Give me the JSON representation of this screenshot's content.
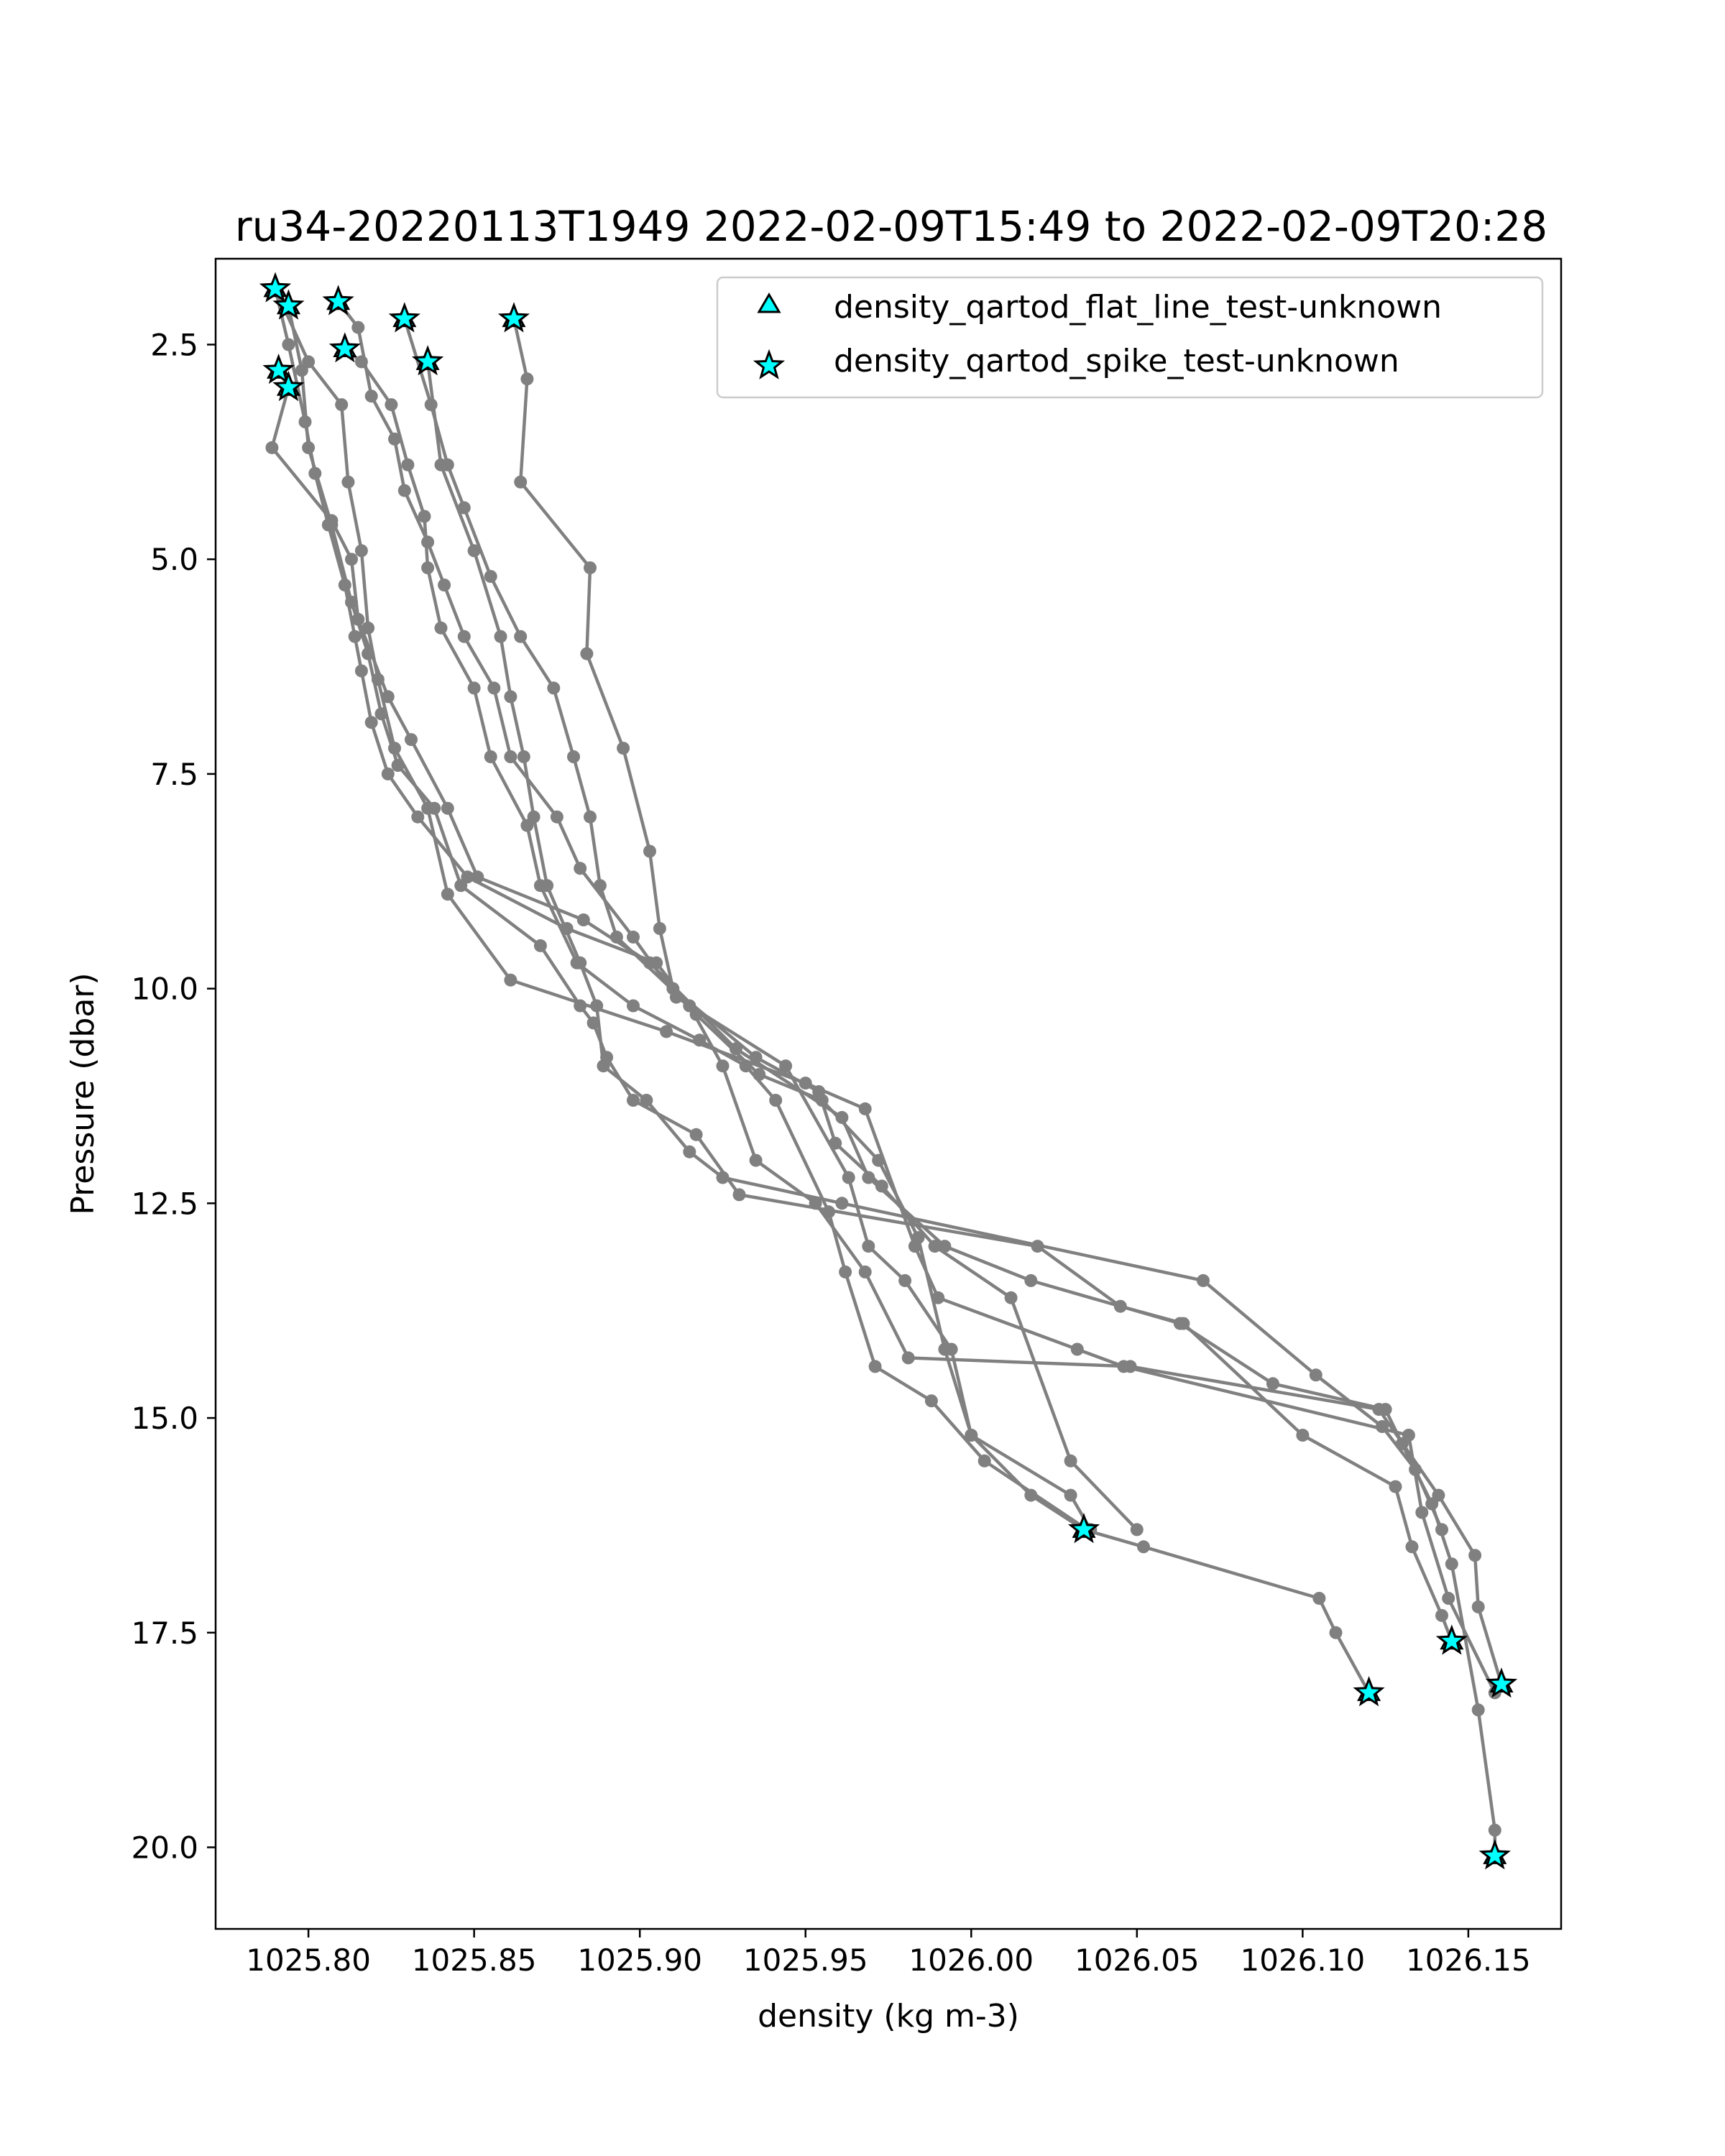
{
  "chart_data": {
    "type": "scatter",
    "title": "ru34-20220113T1949 2022-02-09T15:49 to 2022-02-09T20:28",
    "xlabel": "density (kg m-3)",
    "ylabel": "Pressure (dbar)",
    "xlim": [
      1025.772,
      1026.178
    ],
    "ylim": [
      1.5,
      20.95
    ],
    "y_inverted": true,
    "xticks": [
      "1025.80",
      "1025.85",
      "1025.90",
      "1025.95",
      "1026.00",
      "1026.05",
      "1026.10",
      "1026.15"
    ],
    "xtick_values": [
      1025.8,
      1025.85,
      1025.9,
      1025.95,
      1026.0,
      1026.05,
      1026.1,
      1026.15
    ],
    "yticks": [
      "2.5",
      "5.0",
      "7.5",
      "10.0",
      "12.5",
      "15.0",
      "17.5",
      "20.0"
    ],
    "ytick_values": [
      2.5,
      5.0,
      7.5,
      10.0,
      12.5,
      15.0,
      17.5,
      20.0
    ],
    "grid": false,
    "legend_position": "top-right",
    "colors": {
      "profile_line": "#808080",
      "marker_fill": "#00ffff",
      "marker_edge": "#000000"
    },
    "legend": [
      {
        "label": "density_qartod_flat_line_test-unknown",
        "marker": "triangle"
      },
      {
        "label": "density_qartod_spike_test-unknown",
        "marker": "star"
      }
    ],
    "profiles": [
      {
        "points": [
          [
            1025.79,
            1.85
          ],
          [
            1025.794,
            2.5
          ],
          [
            1025.799,
            3.4
          ],
          [
            1025.802,
            4.0
          ],
          [
            1025.806,
            4.6
          ],
          [
            1025.811,
            5.3
          ],
          [
            1025.814,
            5.9
          ],
          [
            1025.816,
            6.3
          ],
          [
            1025.819,
            6.9
          ],
          [
            1025.824,
            7.5
          ],
          [
            1025.833,
            8.0
          ],
          [
            1025.848,
            8.7
          ],
          [
            1025.878,
            9.3
          ],
          [
            1025.905,
            9.7
          ],
          [
            1025.917,
            10.3
          ],
          [
            1025.936,
            11.0
          ],
          [
            1025.955,
            11.3
          ],
          [
            1025.972,
            12.0
          ],
          [
            1025.984,
            12.9
          ],
          [
            1025.992,
            14.2
          ],
          [
            1026.0,
            15.2
          ],
          [
            1026.018,
            15.9
          ],
          [
            1026.034,
            16.3
          ],
          [
            1026.052,
            16.5
          ],
          [
            1026.105,
            17.1
          ],
          [
            1026.11,
            17.5
          ],
          [
            1026.12,
            18.2
          ]
        ]
      },
      {
        "points": [
          [
            1025.794,
            2.05
          ],
          [
            1025.798,
            2.8
          ],
          [
            1025.8,
            3.7
          ],
          [
            1025.807,
            4.6
          ],
          [
            1025.813,
            5.5
          ],
          [
            1025.818,
            6.1
          ],
          [
            1025.822,
            6.8
          ],
          [
            1025.827,
            7.4
          ],
          [
            1025.838,
            7.9
          ],
          [
            1025.846,
            8.8
          ],
          [
            1025.87,
            9.5
          ],
          [
            1025.882,
            10.2
          ],
          [
            1025.886,
            10.4
          ],
          [
            1025.89,
            10.8
          ],
          [
            1025.898,
            11.3
          ],
          [
            1025.917,
            11.7
          ],
          [
            1025.93,
            12.4
          ],
          [
            1026.02,
            13.0
          ],
          [
            1026.045,
            13.7
          ],
          [
            1026.064,
            13.9
          ],
          [
            1026.1,
            15.2
          ],
          [
            1026.128,
            15.8
          ],
          [
            1026.133,
            16.5
          ],
          [
            1026.142,
            17.3
          ],
          [
            1026.145,
            17.6
          ]
        ]
      },
      {
        "points": [
          [
            1025.791,
            2.8
          ],
          [
            1025.794,
            3.0
          ],
          [
            1025.789,
            3.7
          ],
          [
            1025.807,
            4.55
          ],
          [
            1025.813,
            5.0
          ],
          [
            1025.815,
            5.7
          ],
          [
            1025.824,
            6.6
          ],
          [
            1025.831,
            7.1
          ],
          [
            1025.842,
            7.9
          ],
          [
            1025.851,
            8.7
          ],
          [
            1025.883,
            9.2
          ],
          [
            1025.903,
            9.7
          ],
          [
            1025.929,
            10.7
          ],
          [
            1025.961,
            11.5
          ],
          [
            1025.969,
            12.2
          ],
          [
            1025.992,
            13.0
          ],
          [
            1026.018,
            13.4
          ],
          [
            1026.063,
            13.9
          ],
          [
            1026.091,
            14.6
          ],
          [
            1026.125,
            14.9
          ],
          [
            1026.13,
            15.3
          ],
          [
            1026.139,
            16.0
          ],
          [
            1026.145,
            16.7
          ],
          [
            1026.153,
            18.4
          ],
          [
            1026.158,
            19.8
          ],
          [
            1026.158,
            20.1
          ]
        ]
      },
      {
        "points": [
          [
            1025.79,
            1.85
          ],
          [
            1025.8,
            2.7
          ],
          [
            1025.81,
            3.2
          ],
          [
            1025.812,
            4.1
          ],
          [
            1025.816,
            4.9
          ],
          [
            1025.818,
            5.8
          ],
          [
            1025.821,
            6.4
          ],
          [
            1025.826,
            7.2
          ],
          [
            1025.836,
            7.9
          ],
          [
            1025.842,
            8.9
          ],
          [
            1025.861,
            9.9
          ],
          [
            1025.908,
            10.5
          ],
          [
            1025.95,
            11.1
          ],
          [
            1025.968,
            11.4
          ],
          [
            1025.983,
            13.0
          ],
          [
            1025.99,
            13.6
          ],
          [
            1026.032,
            14.2
          ],
          [
            1026.046,
            14.4
          ],
          [
            1026.132,
            15.2
          ],
          [
            1026.136,
            16.1
          ],
          [
            1026.144,
            17.1
          ],
          [
            1026.158,
            18.2
          ]
        ]
      },
      {
        "points": [
          [
            1025.809,
            2.0
          ],
          [
            1025.815,
            2.3
          ],
          [
            1025.819,
            3.1
          ],
          [
            1025.826,
            3.6
          ],
          [
            1025.829,
            4.2
          ],
          [
            1025.836,
            4.8
          ],
          [
            1025.841,
            5.3
          ],
          [
            1025.847,
            5.9
          ],
          [
            1025.856,
            6.5
          ],
          [
            1025.861,
            7.3
          ],
          [
            1025.875,
            8.0
          ],
          [
            1025.882,
            8.6
          ],
          [
            1025.898,
            9.4
          ],
          [
            1025.911,
            10.1
          ],
          [
            1025.944,
            10.9
          ],
          [
            1025.963,
            12.2
          ],
          [
            1025.969,
            13.0
          ],
          [
            1025.98,
            13.4
          ],
          [
            1025.994,
            14.2
          ],
          [
            1026.0,
            15.2
          ],
          [
            1026.03,
            15.9
          ],
          [
            1026.036,
            16.3
          ]
        ]
      },
      {
        "points": [
          [
            1025.829,
            2.2
          ],
          [
            1025.837,
            3.2
          ],
          [
            1025.842,
            3.9
          ],
          [
            1025.847,
            4.4
          ],
          [
            1025.855,
            5.2
          ],
          [
            1025.864,
            5.9
          ],
          [
            1025.874,
            6.5
          ],
          [
            1025.88,
            7.3
          ],
          [
            1025.885,
            8.0
          ],
          [
            1025.888,
            8.8
          ],
          [
            1025.893,
            9.4
          ],
          [
            1025.915,
            10.2
          ],
          [
            1025.925,
            10.9
          ],
          [
            1025.935,
            12.0
          ],
          [
            1025.953,
            12.5
          ],
          [
            1025.968,
            13.3
          ],
          [
            1025.981,
            14.3
          ],
          [
            1026.048,
            14.4
          ],
          [
            1026.123,
            14.9
          ],
          [
            1026.141,
            15.9
          ],
          [
            1026.152,
            16.6
          ],
          [
            1026.153,
            17.2
          ],
          [
            1026.16,
            18.1
          ]
        ]
      },
      {
        "points": [
          [
            1025.811,
            2.55
          ],
          [
            1025.816,
            2.7
          ],
          [
            1025.825,
            3.2
          ],
          [
            1025.83,
            3.9
          ],
          [
            1025.835,
            4.5
          ],
          [
            1025.836,
            5.1
          ],
          [
            1025.84,
            5.8
          ],
          [
            1025.85,
            6.5
          ],
          [
            1025.855,
            7.3
          ],
          [
            1025.866,
            8.1
          ],
          [
            1025.87,
            8.8
          ],
          [
            1025.881,
            9.7
          ],
          [
            1025.898,
            10.2
          ],
          [
            1025.918,
            10.6
          ],
          [
            1025.932,
            10.9
          ],
          [
            1025.941,
            11.3
          ],
          [
            1025.957,
            12.6
          ],
          [
            1025.962,
            13.3
          ],
          [
            1025.971,
            14.4
          ],
          [
            1025.988,
            14.8
          ],
          [
            1026.004,
            15.5
          ],
          [
            1026.035,
            16.3
          ]
        ]
      },
      {
        "points": [
          [
            1025.836,
            2.7
          ],
          [
            1025.84,
            3.9
          ],
          [
            1025.85,
            4.9
          ],
          [
            1025.858,
            5.9
          ],
          [
            1025.861,
            6.6
          ],
          [
            1025.865,
            7.3
          ],
          [
            1025.868,
            8.0
          ],
          [
            1025.872,
            8.8
          ],
          [
            1025.882,
            9.7
          ],
          [
            1025.887,
            10.2
          ],
          [
            1025.889,
            10.9
          ],
          [
            1025.902,
            11.3
          ],
          [
            1025.915,
            11.9
          ],
          [
            1025.925,
            12.2
          ],
          [
            1025.961,
            12.5
          ],
          [
            1026.07,
            13.4
          ],
          [
            1026.104,
            14.5
          ],
          [
            1026.124,
            15.1
          ],
          [
            1026.134,
            15.6
          ],
          [
            1026.142,
            16.3
          ]
        ]
      },
      {
        "points": [
          [
            1025.862,
            2.2
          ],
          [
            1025.866,
            2.9
          ],
          [
            1025.864,
            4.1
          ],
          [
            1025.885,
            5.1
          ],
          [
            1025.884,
            6.1
          ],
          [
            1025.895,
            7.2
          ],
          [
            1025.903,
            8.4
          ],
          [
            1025.906,
            9.3
          ],
          [
            1025.91,
            10.0
          ],
          [
            1025.935,
            10.8
          ],
          [
            1025.954,
            11.2
          ],
          [
            1025.959,
            11.8
          ],
          [
            1025.973,
            12.3
          ],
          [
            1025.989,
            13.0
          ],
          [
            1026.012,
            13.6
          ],
          [
            1026.03,
            15.5
          ],
          [
            1026.05,
            16.3
          ]
        ]
      }
    ],
    "flat_line_flags": [
      [
        1025.79,
        1.85
      ],
      [
        1025.794,
        2.05
      ],
      [
        1025.809,
        2.0
      ],
      [
        1025.829,
        2.2
      ],
      [
        1025.862,
        2.2
      ],
      [
        1025.811,
        2.55
      ],
      [
        1025.836,
        2.7
      ],
      [
        1025.791,
        2.8
      ],
      [
        1025.794,
        3.0
      ],
      [
        1026.034,
        16.3
      ],
      [
        1026.12,
        18.2
      ],
      [
        1026.145,
        17.6
      ],
      [
        1026.16,
        18.1
      ],
      [
        1026.158,
        20.1
      ]
    ],
    "spike_flags": [
      [
        1025.79,
        1.85
      ],
      [
        1025.794,
        2.05
      ],
      [
        1025.809,
        2.0
      ],
      [
        1025.829,
        2.2
      ],
      [
        1025.862,
        2.2
      ],
      [
        1025.811,
        2.55
      ],
      [
        1025.836,
        2.7
      ],
      [
        1025.791,
        2.8
      ],
      [
        1025.794,
        3.0
      ],
      [
        1026.034,
        16.3
      ],
      [
        1026.12,
        18.2
      ],
      [
        1026.145,
        17.6
      ],
      [
        1026.16,
        18.1
      ],
      [
        1026.158,
        20.1
      ]
    ]
  }
}
